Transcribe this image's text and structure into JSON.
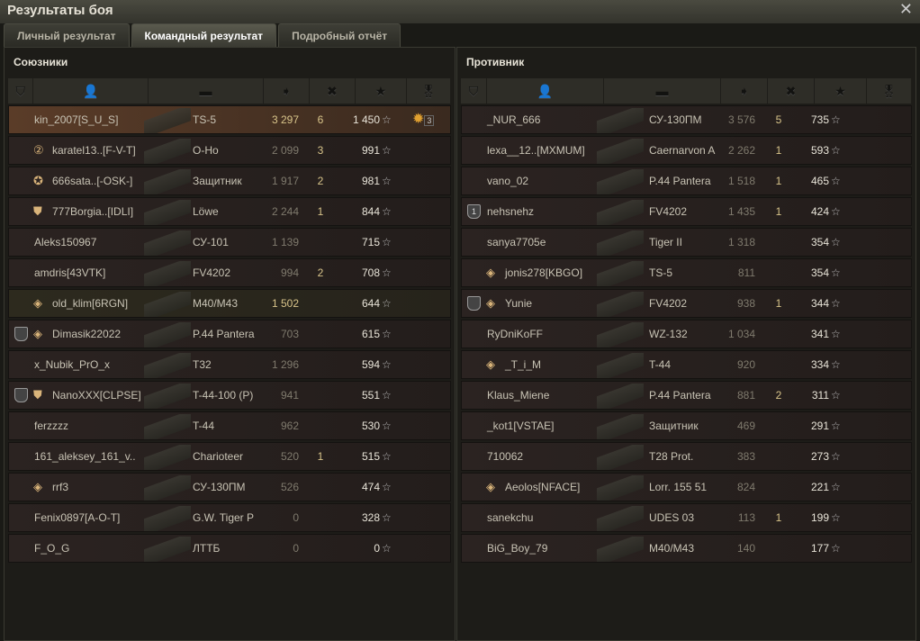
{
  "window": {
    "title": "Результаты боя",
    "close_icon": "close-icon"
  },
  "tabs": [
    {
      "label": "Личный результат"
    },
    {
      "label": "Командный результат",
      "active": true
    },
    {
      "label": "Подробный отчёт"
    }
  ],
  "allies": {
    "title": "Союзники",
    "rows": [
      {
        "name": "kin_2007[S_U_S]",
        "tank": "TS-5",
        "damage": "3 297",
        "kills": "6",
        "xp": "1 450",
        "style": "me",
        "medal": "3"
      },
      {
        "name": "karatel13..[F-V-T]",
        "tank": "O-Ho",
        "damage": "2 099",
        "kills": "3",
        "xp": "991",
        "badge": "②"
      },
      {
        "name": "666sata..[-OSK-]",
        "tank": "Защитник",
        "damage": "1 917",
        "kills": "2",
        "xp": "981",
        "badge": "✪"
      },
      {
        "name": "777Borgia..[IDLI]",
        "tank": "Löwe",
        "damage": "2 244",
        "kills": "1",
        "xp": "844",
        "badge": "⛊"
      },
      {
        "name": "Aleks150967",
        "tank": "СУ-101",
        "damage": "1 139",
        "kills": "",
        "xp": "715"
      },
      {
        "name": "amdris[43VTK]",
        "tank": "FV4202",
        "damage": "994",
        "kills": "2",
        "xp": "708"
      },
      {
        "name": "old_klim[6RGN]",
        "tank": "M40/M43",
        "damage": "1 502",
        "kills": "",
        "xp": "644",
        "style": "pl",
        "badge": "◈"
      },
      {
        "name": "Dimasik22022",
        "tank": "P.44 Pantera",
        "damage": "703",
        "kills": "",
        "xp": "615",
        "squad": "",
        "badge": "◈"
      },
      {
        "name": "x_Nubik_PrO_x",
        "tank": "T32",
        "damage": "1 296",
        "kills": "",
        "xp": "594"
      },
      {
        "name": "NanoXXX[CLPSE]",
        "tank": "T-44-100 (P)",
        "damage": "941",
        "kills": "",
        "xp": "551",
        "squad": "",
        "badge": "⛊"
      },
      {
        "name": "ferzzzz",
        "tank": "T-44",
        "damage": "962",
        "kills": "",
        "xp": "530"
      },
      {
        "name": "161_aleksey_161_v..",
        "tank": "Charioteer",
        "damage": "520",
        "kills": "1",
        "xp": "515"
      },
      {
        "name": "rrf3",
        "tank": "СУ-130ПМ",
        "damage": "526",
        "kills": "",
        "xp": "474",
        "badge": "◈"
      },
      {
        "name": "Fenix0897[A-O-T]",
        "tank": "G.W. Tiger P",
        "damage": "0",
        "kills": "",
        "xp": "328"
      },
      {
        "name": "F_O_G",
        "tank": "ЛТТБ",
        "damage": "0",
        "kills": "",
        "xp": "0"
      }
    ]
  },
  "enemies": {
    "title": "Противник",
    "rows": [
      {
        "name": "_NUR_666",
        "tank": "СУ-130ПМ",
        "damage": "3 576",
        "kills": "5",
        "xp": "735"
      },
      {
        "name": "lexa__12..[MXMUM]",
        "tank": "Caernarvon A",
        "damage": "2 262",
        "kills": "1",
        "xp": "593"
      },
      {
        "name": "vano_02",
        "tank": "P.44 Pantera",
        "damage": "1 518",
        "kills": "1",
        "xp": "465"
      },
      {
        "name": "nehsnehz",
        "tank": "FV4202",
        "damage": "1 435",
        "kills": "1",
        "xp": "424",
        "squad": "1"
      },
      {
        "name": "sanya7705e",
        "tank": "Tiger II",
        "damage": "1 318",
        "kills": "",
        "xp": "354"
      },
      {
        "name": "jonis278[KBGO]",
        "tank": "TS-5",
        "damage": "811",
        "kills": "",
        "xp": "354",
        "badge": "◈"
      },
      {
        "name": "Yunie",
        "tank": "FV4202",
        "damage": "938",
        "kills": "1",
        "xp": "344",
        "squad": "",
        "badge": "◈"
      },
      {
        "name": "RyDniKoFF",
        "tank": "WZ-132",
        "damage": "1 034",
        "kills": "",
        "xp": "341"
      },
      {
        "name": "_T_i_M",
        "tank": "T-44",
        "damage": "920",
        "kills": "",
        "xp": "334",
        "badge": "◈"
      },
      {
        "name": "Klaus_Miene",
        "tank": "P.44 Pantera",
        "damage": "881",
        "kills": "2",
        "xp": "311"
      },
      {
        "name": "_kot1[VSTAE]",
        "tank": "Защитник",
        "damage": "469",
        "kills": "",
        "xp": "291"
      },
      {
        "name": "710062",
        "tank": "T28 Prot.",
        "damage": "383",
        "kills": "",
        "xp": "273"
      },
      {
        "name": "Aeolos[NFACE]",
        "tank": "Lorr. 155 51",
        "damage": "824",
        "kills": "",
        "xp": "221",
        "badge": "◈"
      },
      {
        "name": "sanekchu",
        "tank": "UDES 03",
        "damage": "113",
        "kills": "1",
        "xp": "199"
      },
      {
        "name": "BiG_Boy_79",
        "tank": "M40/M43",
        "damage": "140",
        "kills": "",
        "xp": "177"
      }
    ]
  },
  "columns": [
    "squad-icon",
    "player-icon",
    "tank-icon",
    "damage-icon",
    "kills-icon",
    "xp-star-icon",
    "medal-icon"
  ],
  "colors": {
    "player_row": "#5a3c28",
    "platoon_row": "#2d2a1e",
    "damage_highlight": "#d8c48a"
  }
}
